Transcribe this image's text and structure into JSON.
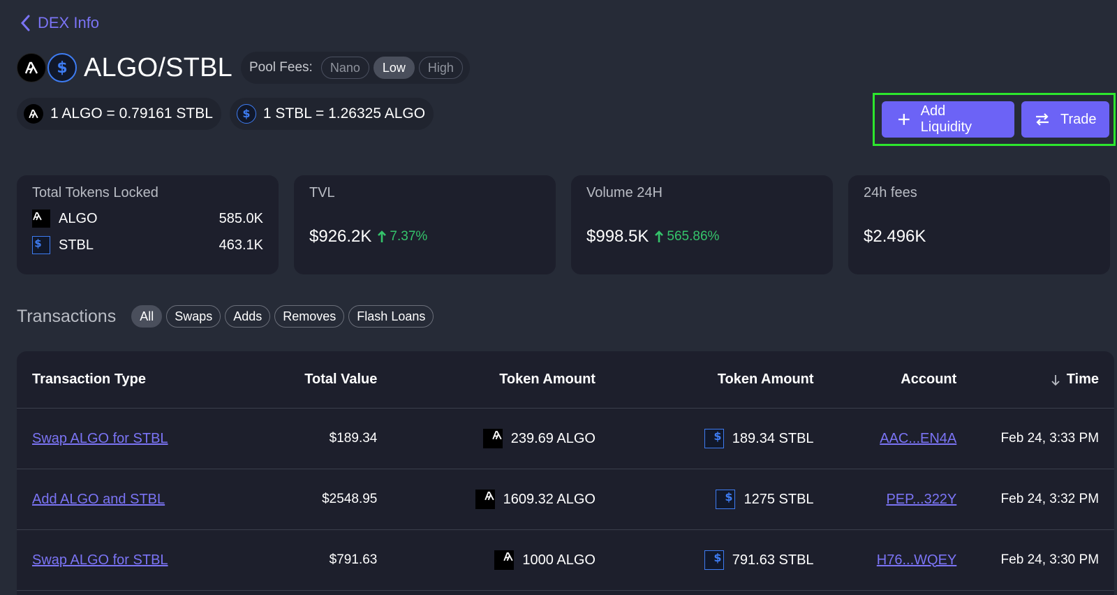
{
  "nav": {
    "back_label": "DEX Info"
  },
  "pool": {
    "title": "ALGO/STBL",
    "fees_label": "Pool Fees:",
    "fee_options": [
      "Nano",
      "Low",
      "High"
    ],
    "selected_fee": "Low",
    "rates": [
      "1 ALGO = 0.79161 STBL",
      "1 STBL = 1.26325 ALGO"
    ]
  },
  "actions": {
    "add_liquidity": "Add Liquidity",
    "trade": "Trade",
    "highlight_color": "#2de62d"
  },
  "cards": {
    "locked": {
      "title": "Total Tokens Locked",
      "rows": [
        {
          "symbol": "ALGO",
          "amount": "585.0K"
        },
        {
          "symbol": "STBL",
          "amount": "463.1K"
        }
      ]
    },
    "tvl": {
      "title": "TVL",
      "value": "$926.2K",
      "change": "7.37%"
    },
    "volume": {
      "title": "Volume 24H",
      "value": "$998.5K",
      "change": "565.86%"
    },
    "fees": {
      "title": "24h fees",
      "value": "$2.496K"
    }
  },
  "transactions": {
    "title": "Transactions",
    "filters": [
      "All",
      "Swaps",
      "Adds",
      "Removes",
      "Flash Loans"
    ],
    "active_filter": "All",
    "columns": [
      "Transaction Type",
      "Total Value",
      "Token Amount",
      "Token Amount",
      "Account",
      "Time"
    ],
    "rows": [
      {
        "type": "Swap ALGO for STBL",
        "total": "$189.34",
        "amount_a": "239.69 ALGO",
        "amount_b": "189.34 STBL",
        "account": "AAC...EN4A",
        "time": "Feb 24, 3:33 PM"
      },
      {
        "type": "Add ALGO and STBL",
        "total": "$2548.95",
        "amount_a": "1609.32 ALGO",
        "amount_b": "1275 STBL",
        "account": "PEP...322Y",
        "time": "Feb 24, 3:32 PM"
      },
      {
        "type": "Swap ALGO for STBL",
        "total": "$791.63",
        "amount_a": "1000 ALGO",
        "amount_b": "791.63 STBL",
        "account": "H76...WQEY",
        "time": "Feb 24, 3:30 PM"
      }
    ]
  },
  "icons": {
    "algo": "algo-token-icon",
    "stbl": "stbl-token-icon",
    "up": "arrow-up-icon",
    "sort": "arrow-down-icon"
  },
  "colors": {
    "accent": "#6c63f6",
    "link": "#7b74f5",
    "positive": "#35c46b",
    "background": "#262b37",
    "card": "#1d1f2c"
  }
}
